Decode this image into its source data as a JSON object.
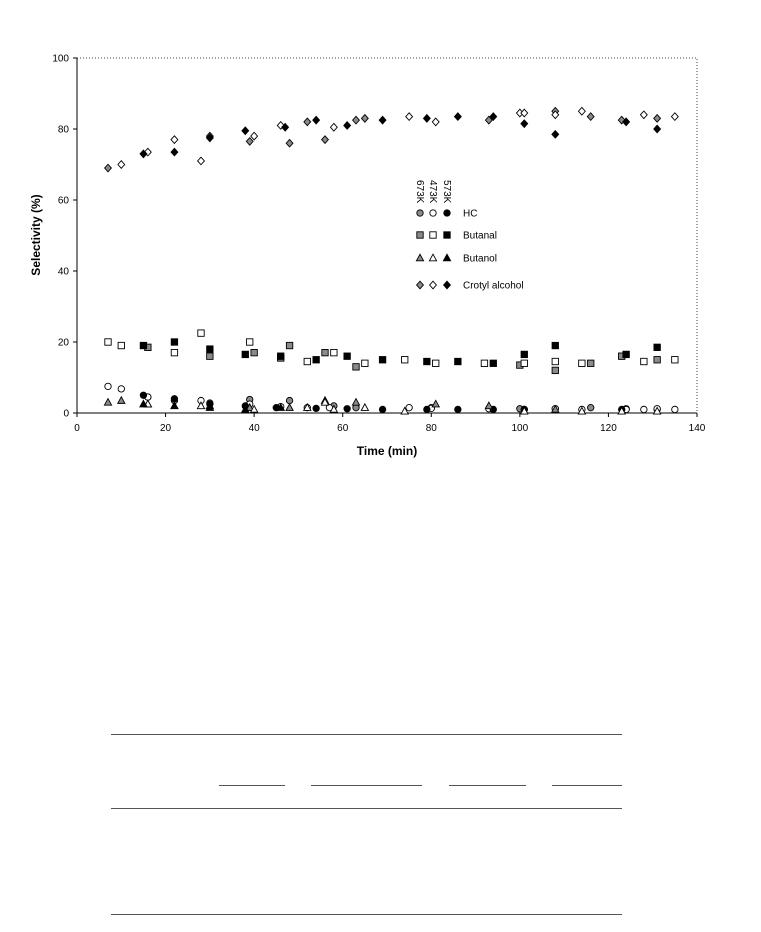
{
  "chart_data": {
    "type": "scatter",
    "title": "",
    "xlabel": "Time (min)",
    "ylabel": "Selectivity (%)",
    "xlim": [
      0,
      140
    ],
    "ylim": [
      0,
      100
    ],
    "xticks": [
      0,
      20,
      40,
      60,
      80,
      100,
      120,
      140
    ],
    "yticks": [
      0,
      20,
      40,
      60,
      80,
      100
    ],
    "grid": false,
    "plot_area_border": "dotted",
    "legend_placement": "center-right",
    "temperature_labels": [
      "673K",
      "473K",
      "573K"
    ],
    "series": [
      {
        "name": "HC",
        "temperature": "673K",
        "marker": "circle",
        "fill": "gray",
        "x": [
          16,
          22,
          30,
          39,
          48,
          58,
          63,
          80,
          100,
          108,
          116,
          124,
          131
        ],
        "y": [
          4.5,
          3.5,
          2.8,
          3.8,
          3.5,
          2.0,
          1.5,
          1.5,
          1.2,
          1.2,
          1.5,
          1.2,
          1.0
        ]
      },
      {
        "name": "HC",
        "temperature": "473K",
        "marker": "circle",
        "fill": "white",
        "x": [
          7,
          10,
          16,
          28,
          39,
          46,
          52,
          57,
          75,
          80,
          93,
          101,
          108,
          114,
          124,
          128,
          131,
          135
        ],
        "y": [
          7.5,
          6.8,
          4.5,
          3.5,
          2.5,
          1.8,
          1.5,
          1.5,
          1.5,
          1.3,
          1.2,
          1.0,
          1.2,
          1.0,
          1.0,
          1.0,
          1.2,
          1.0
        ]
      },
      {
        "name": "HC",
        "temperature": "573K",
        "marker": "circle",
        "fill": "black",
        "x": [
          15,
          22,
          30,
          38,
          45,
          54,
          61,
          69,
          79,
          86,
          94,
          101,
          123
        ],
        "y": [
          5.0,
          4.0,
          2.5,
          2.0,
          1.5,
          1.3,
          1.2,
          1.0,
          1.0,
          1.0,
          1.0,
          1.0,
          1.0
        ]
      },
      {
        "name": "Butanal",
        "temperature": "673K",
        "marker": "square",
        "fill": "gray",
        "x": [
          16,
          30,
          40,
          46,
          48,
          56,
          63,
          100,
          108,
          116,
          123,
          131
        ],
        "y": [
          18.5,
          16.0,
          17.0,
          15.5,
          19.0,
          17.0,
          13.0,
          13.5,
          12.0,
          14.0,
          16.0,
          15.0
        ]
      },
      {
        "name": "Butanal",
        "temperature": "473K",
        "marker": "square",
        "fill": "white",
        "x": [
          7,
          10,
          22,
          28,
          39,
          52,
          58,
          65,
          74,
          81,
          92,
          101,
          108,
          114,
          128,
          135
        ],
        "y": [
          20.0,
          19.0,
          17.0,
          22.5,
          20.0,
          14.5,
          17.0,
          14.0,
          15.0,
          14.0,
          14.0,
          14.0,
          14.5,
          14.0,
          14.5,
          15.0
        ]
      },
      {
        "name": "Butanal",
        "temperature": "573K",
        "marker": "square",
        "fill": "black",
        "x": [
          15,
          22,
          30,
          38,
          46,
          54,
          61,
          69,
          79,
          86,
          94,
          101,
          108,
          124,
          131
        ],
        "y": [
          19.0,
          20.0,
          18.0,
          16.5,
          16.0,
          15.0,
          16.0,
          15.0,
          14.5,
          14.5,
          14.0,
          16.5,
          19.0,
          16.5,
          18.5
        ]
      },
      {
        "name": "Butanol",
        "temperature": "673K",
        "marker": "triangle",
        "fill": "gray",
        "x": [
          7,
          10,
          16,
          30,
          39,
          48,
          56,
          63,
          81,
          93,
          108
        ],
        "y": [
          3.0,
          3.5,
          2.5,
          2.0,
          1.5,
          1.5,
          3.5,
          3.0,
          2.5,
          2.0,
          1.0
        ]
      },
      {
        "name": "Butanol",
        "temperature": "473K",
        "marker": "triangle",
        "fill": "white",
        "x": [
          16,
          28,
          40,
          52,
          56,
          58,
          65,
          74,
          101,
          114,
          123,
          131
        ],
        "y": [
          2.5,
          2.0,
          1.0,
          1.5,
          3.0,
          1.0,
          1.5,
          0.5,
          0.5,
          0.5,
          0.5,
          0.5
        ]
      },
      {
        "name": "Butanol",
        "temperature": "573K",
        "marker": "triangle",
        "fill": "black",
        "x": [
          15,
          22,
          30,
          38,
          46
        ],
        "y": [
          2.5,
          2.0,
          1.5,
          1.0,
          1.5
        ]
      },
      {
        "name": "Crotyl alcohol",
        "temperature": "673K",
        "marker": "diamond",
        "fill": "gray",
        "x": [
          7,
          30,
          39,
          48,
          52,
          56,
          63,
          65,
          93,
          108,
          116,
          123,
          131
        ],
        "y": [
          69.0,
          78.0,
          76.5,
          76.0,
          82.0,
          77.0,
          82.5,
          83.0,
          82.5,
          85.0,
          83.5,
          82.5,
          83.0
        ]
      },
      {
        "name": "Crotyl alcohol",
        "temperature": "473K",
        "marker": "diamond",
        "fill": "white",
        "x": [
          10,
          16,
          22,
          28,
          40,
          46,
          58,
          75,
          81,
          100,
          101,
          108,
          114,
          128,
          135
        ],
        "y": [
          70.0,
          73.5,
          77.0,
          71.0,
          78.0,
          81.0,
          80.5,
          83.5,
          82.0,
          84.5,
          84.5,
          84.0,
          85.0,
          84.0,
          83.5
        ]
      },
      {
        "name": "Crotyl alcohol",
        "temperature": "573K",
        "marker": "diamond",
        "fill": "black",
        "x": [
          15,
          22,
          30,
          38,
          47,
          54,
          61,
          69,
          79,
          86,
          94,
          101,
          108,
          124,
          131
        ],
        "y": [
          73.0,
          73.5,
          77.5,
          79.5,
          80.5,
          82.5,
          81.0,
          82.5,
          83.0,
          83.5,
          83.5,
          81.5,
          78.5,
          82.0,
          80.0
        ]
      }
    ],
    "legend": [
      {
        "label": "HC",
        "marker": "circle"
      },
      {
        "label": "Butanal",
        "marker": "square"
      },
      {
        "label": "Butanol",
        "marker": "triangle"
      },
      {
        "label": "Crotyl alcohol",
        "marker": "diamond"
      }
    ]
  },
  "colors": {
    "fill_black": "#000000",
    "fill_gray": "#8a8a8a",
    "fill_white": "#ffffff",
    "stroke": "#000000",
    "border": "#444444"
  }
}
